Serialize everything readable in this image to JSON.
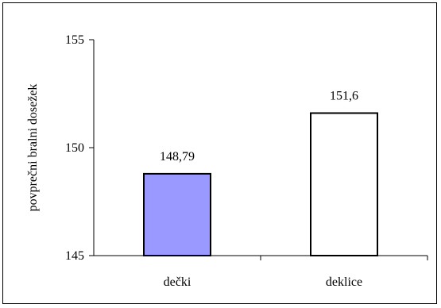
{
  "chart_data": {
    "type": "bar",
    "categories": [
      "dečki",
      "deklice"
    ],
    "values": [
      148.79,
      151.6
    ],
    "data_labels": [
      "148,79",
      "151,6"
    ],
    "ylabel": "povprečni bralni dosežek",
    "xlabel": "",
    "ylim": [
      145,
      155
    ],
    "yticks": [
      145,
      150,
      155
    ],
    "ytick_labels": [
      "145",
      "150",
      "155"
    ],
    "grid": false,
    "bar_colors": [
      "#9999ff",
      "#ffffff"
    ],
    "bar_edge_color": "#000000"
  }
}
